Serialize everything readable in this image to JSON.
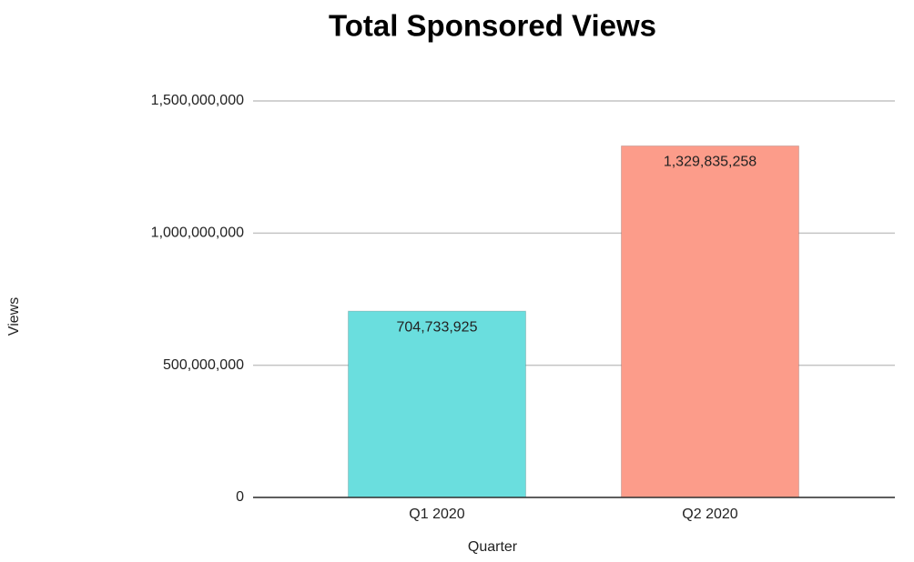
{
  "chart_data": {
    "type": "bar",
    "title": "Total Sponsored Views",
    "x_label": "Quarter",
    "y_label": "Views",
    "categories": [
      "Q1 2020",
      "Q2 2020"
    ],
    "values": [
      704733925,
      1329835258
    ],
    "value_labels": [
      "704,733,925",
      "1,329,835,258"
    ],
    "colors": [
      "#6adede",
      "#fc9c8a"
    ],
    "ylim": [
      0,
      1500000000
    ],
    "yticks": [
      0,
      {
        "value": 500000000,
        "label": "500,000,000"
      },
      {
        "value": 1000000000,
        "label": "1,000,000,000"
      },
      {
        "value": 1500000000,
        "label": "1,500,000,000"
      }
    ],
    "grid": true
  }
}
